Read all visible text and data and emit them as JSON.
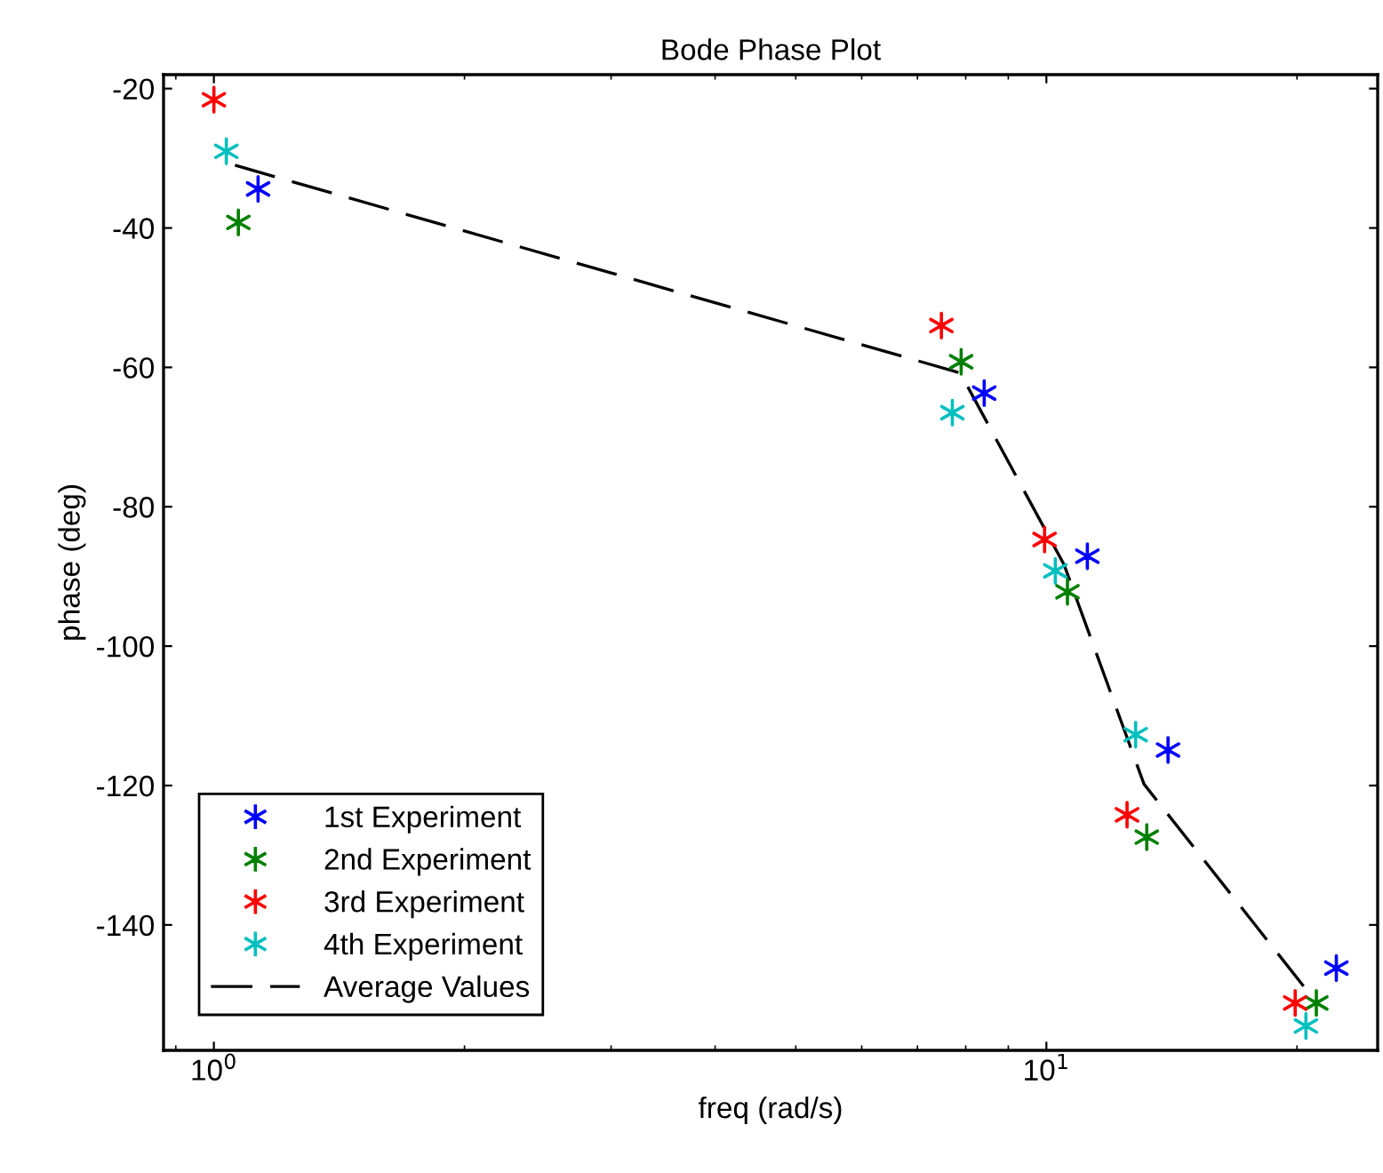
{
  "chart_data": {
    "type": "scatter",
    "title": "Bode Phase Plot",
    "xlabel": "freq (rad/s)",
    "ylabel": "phase (deg)",
    "log": "x",
    "xlim": [
      0.87,
      25
    ],
    "xticks": [
      {
        "value": 1,
        "label": "10$^{0}$"
      },
      {
        "value": 10,
        "label": "10$^{1}$"
      }
    ],
    "ylim": [
      -158,
      -18
    ],
    "yticks": [
      -140,
      -120,
      -100,
      -80,
      -60,
      -40,
      -20
    ],
    "grid": false,
    "legend": "bottom left",
    "marker": "cross",
    "series": [
      {
        "name": "1st Experiment",
        "color": "#0000ff",
        "x": [
          1.13,
          8.42,
          11.2,
          14.0,
          22.3
        ],
        "values": [
          -34.4,
          -63.7,
          -87.1,
          -114.9,
          -146.2
        ]
      },
      {
        "name": "2nd Experiment",
        "color": "#008000",
        "x": [
          1.07,
          7.9,
          10.6,
          13.2,
          21.1
        ],
        "values": [
          -39.2,
          -59.2,
          -92.2,
          -127.4,
          -151.2
        ]
      },
      {
        "name": "3rd Experiment",
        "color": "#ff0000",
        "x": [
          1.0,
          7.48,
          9.95,
          12.5,
          19.9
        ],
        "values": [
          -21.6,
          -54.0,
          -84.7,
          -124.2,
          -151.2
        ]
      },
      {
        "name": "4th Experiment",
        "color": "#00bfbf",
        "x": [
          1.035,
          7.71,
          10.25,
          12.8,
          20.5
        ],
        "values": [
          -29.0,
          -66.5,
          -89.2,
          -112.7,
          -154.5
        ]
      },
      {
        "name": "Average Values",
        "type": "line",
        "color": "#000000",
        "line_style": "dashed",
        "marker": "none",
        "x": [
          1.06,
          7.88,
          10.5,
          13.1,
          21.0
        ],
        "values": [
          -31.0,
          -60.8,
          -88.3,
          -119.8,
          -150.8
        ]
      }
    ]
  }
}
